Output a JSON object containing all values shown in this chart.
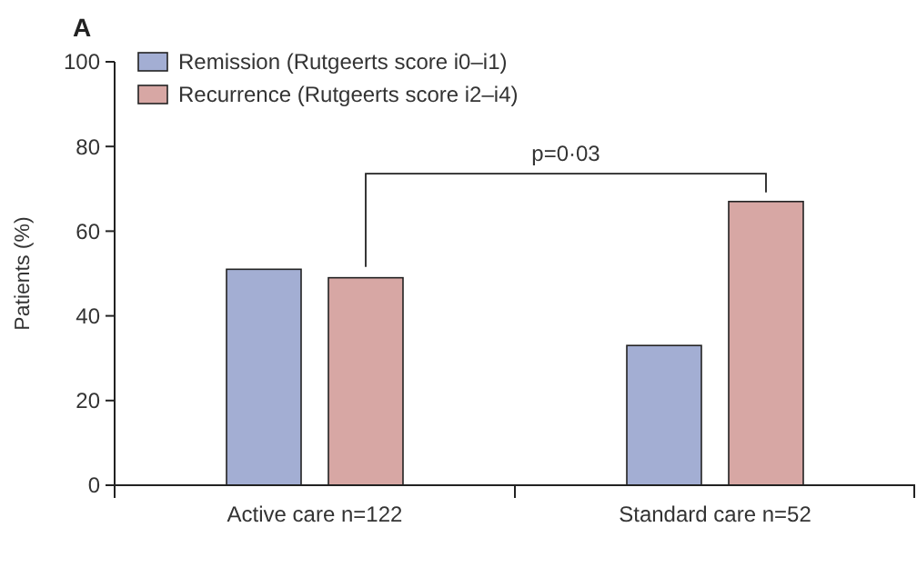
{
  "chart_data": {
    "type": "bar",
    "title": "A",
    "ylabel": "Patients (%)",
    "categories": [
      "Active care n=122",
      "Standard care n=52"
    ],
    "series": [
      {
        "name": "Remission (Rutgeerts score i0–i1)",
        "color": "#a3aed3",
        "values": [
          51,
          33
        ]
      },
      {
        "name": "Recurrence (Rutgeerts score i2–i4)",
        "color": "#d7a7a4",
        "values": [
          49,
          67
        ]
      }
    ],
    "ylim": [
      0,
      100
    ],
    "yticks": [
      0,
      20,
      40,
      60,
      80,
      100
    ],
    "grid": false,
    "legend": "top left",
    "annotations": [
      "p=0·03"
    ]
  }
}
